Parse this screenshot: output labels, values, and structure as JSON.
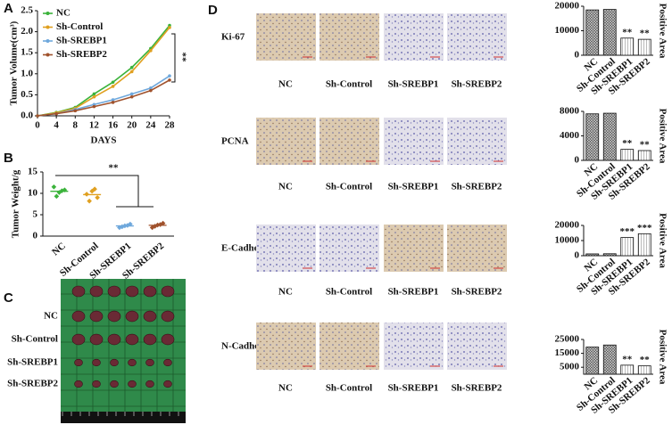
{
  "chart_data": [
    {
      "type": "line",
      "panel": "A",
      "y_label": "Tumor Volume(cm³)",
      "x_label": "DAYS",
      "x": [
        0,
        4,
        8,
        12,
        16,
        20,
        24,
        28
      ],
      "xlim": [
        0,
        28
      ],
      "xticks": [
        0,
        4,
        8,
        12,
        16,
        20,
        24,
        28
      ],
      "ylim": [
        0,
        2.5
      ],
      "yticks": [
        {
          "value": 0,
          "label": "0.0"
        },
        0.5,
        {
          "value": 1,
          "label": "1.0"
        },
        1.5,
        {
          "value": 2,
          "label": "2.0"
        },
        2.5
      ],
      "legend": "top-left",
      "annotation": "**",
      "series": [
        {
          "name": "NC",
          "color": "#3bb33b",
          "values": [
            0,
            0.08,
            0.2,
            0.52,
            0.8,
            1.15,
            1.6,
            2.15
          ]
        },
        {
          "name": "Sh-Control",
          "color": "#e0a020",
          "values": [
            0,
            0.07,
            0.18,
            0.45,
            0.7,
            1.05,
            1.55,
            2.1
          ]
        },
        {
          "name": "Sh-SREBP1",
          "color": "#6fa8dc",
          "values": [
            0,
            0.05,
            0.15,
            0.27,
            0.38,
            0.52,
            0.66,
            0.95
          ]
        },
        {
          "name": "Sh-SREBP2",
          "color": "#a0522d",
          "values": [
            0,
            0.05,
            0.12,
            0.22,
            0.32,
            0.45,
            0.6,
            0.85
          ]
        }
      ]
    },
    {
      "type": "dot",
      "panel": "B",
      "y_label": "Tumor Weight/g",
      "categories": [
        "NC",
        "Sh-Control",
        "Sh-SREBP1",
        "Sh-SREBP2"
      ],
      "colors": [
        "#3bb33b",
        "#e0a020",
        "#6fa8dc",
        "#a0522d"
      ],
      "values": [
        [
          10.2,
          11.5,
          10.8,
          9.3,
          10.6
        ],
        [
          10.5,
          9.8,
          9.0,
          8.2,
          11.0
        ],
        [
          2.4,
          2.0,
          2.8,
          2.2,
          2.5
        ],
        [
          2.6,
          2.0,
          3.0,
          2.3,
          2.7
        ]
      ],
      "ylim": [
        0,
        15
      ],
      "yticks": [
        0,
        5,
        10,
        15
      ],
      "annotation": "**"
    },
    {
      "type": "bar",
      "y_label": "Positive Area",
      "categories": [
        "NC",
        "Sh-Control",
        "Sh-SREBP1",
        "Sh-SREBP2"
      ],
      "values": [
        18500,
        18700,
        7000,
        6500
      ],
      "annotations": [
        null,
        null,
        "**",
        "**"
      ],
      "ylim": [
        0,
        20000
      ],
      "yticks": [
        0,
        10000,
        20000
      ]
    },
    {
      "type": "bar",
      "y_label": "Positive Area",
      "categories": [
        "NC",
        "Sh-Control",
        "Sh-SREBP1",
        "Sh-SREBP2"
      ],
      "values": [
        7600,
        7700,
        1800,
        1600
      ],
      "annotations": [
        null,
        null,
        "**",
        "**"
      ],
      "ylim": [
        0,
        8000
      ],
      "yticks": [
        0,
        4000,
        8000
      ]
    },
    {
      "type": "bar",
      "y_label": "Positive Area",
      "categories": [
        "NC",
        "Sh-Control",
        "Sh-SREBP1",
        "Sh-SREBP2"
      ],
      "values": [
        1200,
        1300,
        12000,
        14500
      ],
      "annotations": [
        null,
        null,
        "***",
        "***"
      ],
      "ylim": [
        0,
        20000
      ],
      "yticks": [
        0,
        10000,
        20000
      ]
    },
    {
      "type": "bar",
      "y_label": "Positive Area",
      "categories": [
        "NC",
        "Sh-Control",
        "Sh-SREBP1",
        "Sh-SREBP2"
      ],
      "values": [
        19500,
        21000,
        6500,
        6000
      ],
      "annotations": [
        null,
        null,
        "**",
        "**"
      ],
      "ylim": [
        0,
        25000
      ],
      "yticks": [
        5000,
        15000,
        25000
      ]
    }
  ],
  "photo_panel": {
    "label": "C",
    "rows": [
      "NC",
      "Sh-Control",
      "Sh-SREBP1",
      "Sh-SREBP2"
    ]
  },
  "histology_panel": {
    "label": "D",
    "markers": [
      "Ki-67",
      "PCNA",
      "E-Cadherin",
      "N-Cadherin"
    ],
    "groups": [
      "NC",
      "Sh-Control",
      "Sh-SREBP1",
      "Sh-SREBP2"
    ]
  }
}
